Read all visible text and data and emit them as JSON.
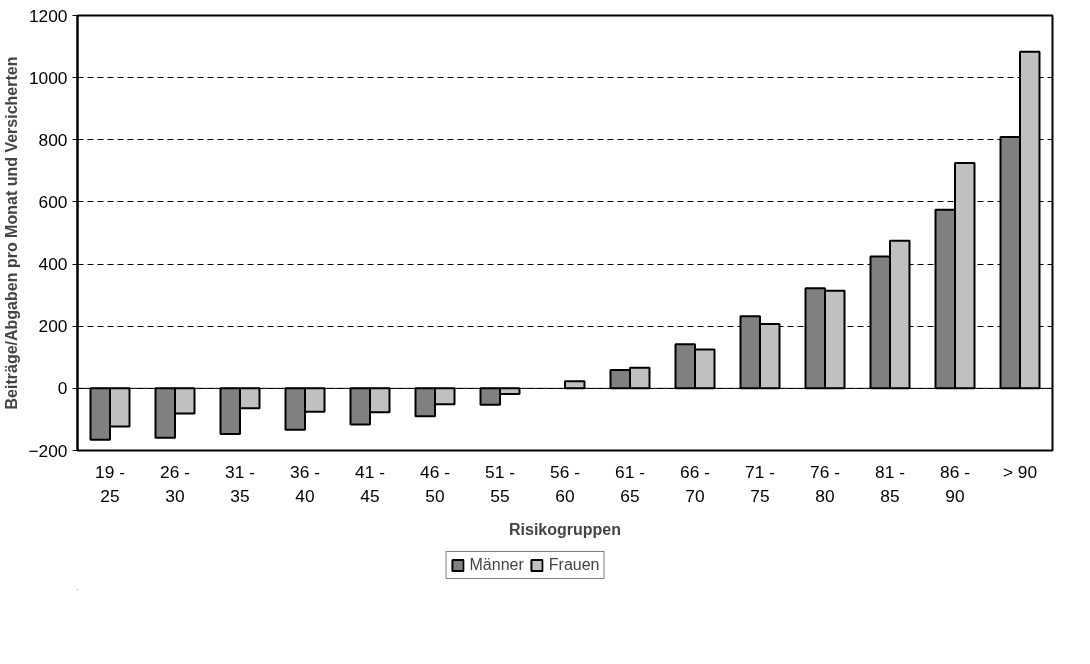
{
  "chart_data": {
    "type": "bar",
    "xlabel": "Risikogruppen",
    "ylabel": "Beiträge/Abgaben pro Monat und Versicherten",
    "categories": [
      "19 - 25",
      "26 - 30",
      "31 - 35",
      "36 - 40",
      "41 - 45",
      "46 - 50",
      "51 - 55",
      "56 - 60",
      "61 - 65",
      "66 - 70",
      "71 - 75",
      "76 - 80",
      "81 - 85",
      "86 - 90",
      "> 90"
    ],
    "series": [
      {
        "name": "Männer",
        "color": "#808080",
        "values": [
          -165,
          -159,
          -147,
          -133,
          -116,
          -90,
          -53,
          null,
          59,
          142,
          232,
          322,
          424,
          575,
          809
        ]
      },
      {
        "name": "Frauen",
        "color": "#c0c0c0",
        "values": [
          -123,
          -81,
          -64,
          -75,
          -77,
          -51,
          -18,
          23,
          66,
          125,
          207,
          314,
          475,
          725,
          1083
        ]
      }
    ],
    "ylim": [
      -200,
      1200
    ],
    "yticks": [
      -200,
      0,
      200,
      400,
      600,
      800,
      1000,
      1200
    ],
    "grid": "y",
    "legend": "bottom"
  }
}
